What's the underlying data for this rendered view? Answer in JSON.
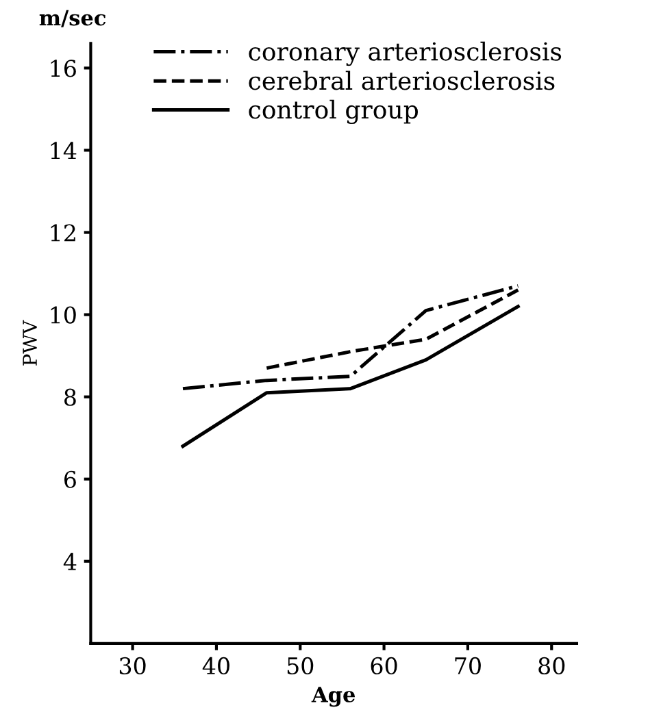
{
  "chart_data": {
    "type": "line",
    "xlabel": "Age",
    "ylabel": "PWV",
    "title": "m/sec",
    "xlim": [
      25,
      83
    ],
    "xticks": [
      30,
      40,
      50,
      60,
      70,
      80
    ],
    "ylim": [
      2,
      16.6
    ],
    "yticks": [
      4,
      6,
      8,
      10,
      12,
      14,
      16
    ],
    "grid": false,
    "legend": "top",
    "marker": "none",
    "series": [
      {
        "name": "coronary arteriosclerosis",
        "color": "#000000",
        "line_style": "dashdot",
        "x": [
          36,
          46,
          56,
          65,
          76
        ],
        "values": [
          8.2,
          8.4,
          8.5,
          10.1,
          10.7
        ]
      },
      {
        "name": "cerebral arteriosclerosis",
        "color": "#000000",
        "line_style": "dashed",
        "x": [
          46,
          56,
          65,
          76
        ],
        "values": [
          8.7,
          9.1,
          9.4,
          10.6
        ]
      },
      {
        "name": "control group",
        "color": "#000000",
        "line_style": "solid",
        "x": [
          36,
          46,
          56,
          65,
          76
        ],
        "values": [
          6.8,
          8.1,
          8.2,
          8.9,
          10.2
        ]
      }
    ]
  }
}
